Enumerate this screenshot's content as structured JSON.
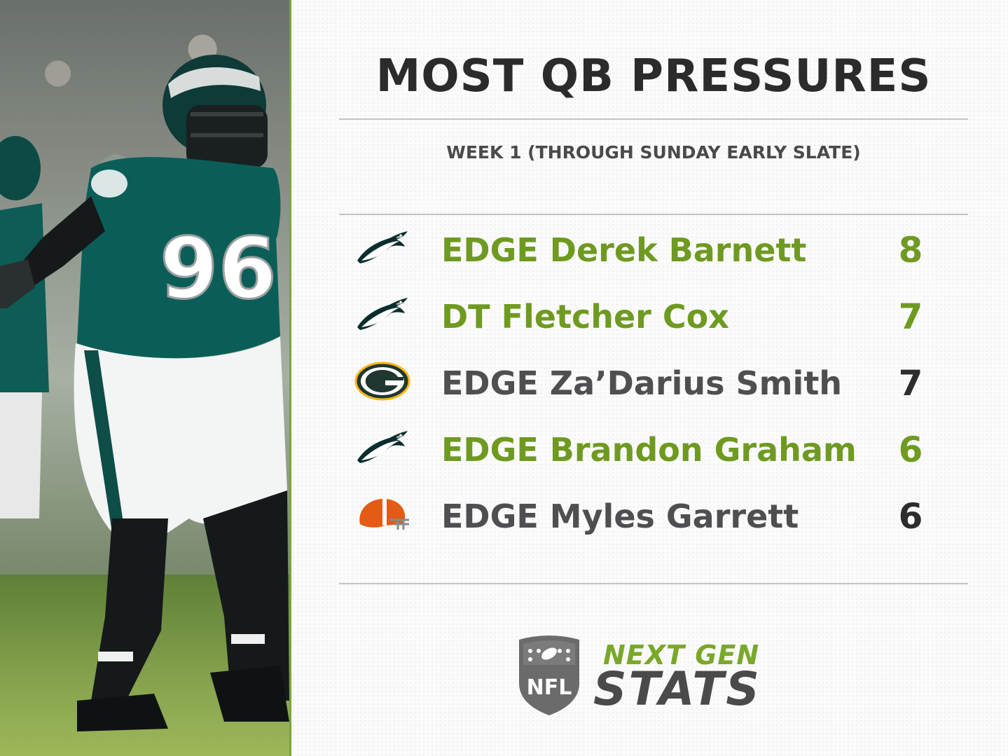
{
  "title": "MOST QB PRESSURES",
  "subtitle": "WEEK 1 (THROUGH SUNDAY EARLY SLATE)",
  "colors": {
    "highlight": "#6f9a21",
    "default_name": "#4f4f52",
    "default_value": "#2d2d2d",
    "accent_rule": "#7aa33a"
  },
  "leaders": [
    {
      "team_icon": "eagles-logo-icon",
      "name": "EDGE Derek Barnett",
      "value": "8",
      "highlight": true
    },
    {
      "team_icon": "eagles-logo-icon",
      "name": "DT Fletcher Cox",
      "value": "7",
      "highlight": true
    },
    {
      "team_icon": "packers-logo-icon",
      "name": "EDGE Za’Darius Smith",
      "value": "7",
      "highlight": false
    },
    {
      "team_icon": "eagles-logo-icon",
      "name": "EDGE Brandon Graham",
      "value": "6",
      "highlight": true
    },
    {
      "team_icon": "browns-helmet-icon",
      "name": "EDGE Myles Garrett",
      "value": "6",
      "highlight": false
    }
  ],
  "photo": {
    "jersey_number": "96"
  },
  "brand": {
    "line1": "NEXT GEN",
    "line2": "STATS",
    "shield_text": "NFL"
  }
}
